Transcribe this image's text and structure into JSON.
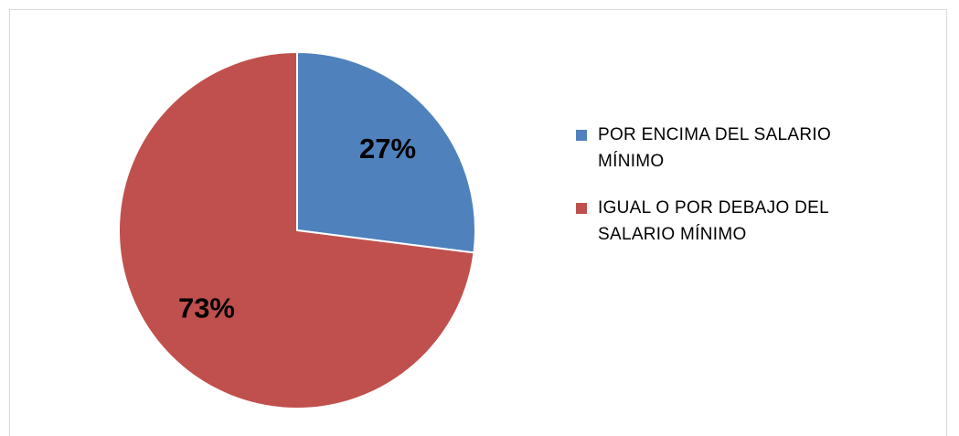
{
  "chart_data": {
    "type": "pie",
    "categories": [
      "POR ENCIMA DEL SALARIO MÍNIMO",
      "IGUAL O POR DEBAJO DEL SALARIO MÍNIMO"
    ],
    "values": [
      27,
      73
    ],
    "value_labels": [
      "27%",
      "73%"
    ],
    "colors": [
      "#4f81bd",
      "#c0504d"
    ],
    "legend": "right"
  }
}
